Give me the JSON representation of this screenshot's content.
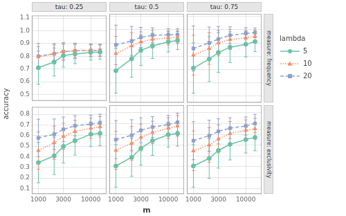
{
  "chart_data": {
    "type": "line",
    "log": "x",
    "grid": true,
    "legend": "right",
    "legend_title": "lambda",
    "xlabel": "m",
    "ylabel": "accuracy",
    "x": [
      1000,
      2000,
      3000,
      5000,
      10000,
      15000
    ],
    "xlim": [
      750,
      20000
    ],
    "xticks": [
      1000,
      3000,
      10000
    ],
    "columns": [
      "tau: 0.25",
      "tau: 0.5",
      "tau: 0.75"
    ],
    "series": [
      {
        "name": "5",
        "color": "#66c2a5",
        "marker": "circle",
        "line_style": "solid"
      },
      {
        "name": "10",
        "color": "#fc8d62",
        "marker": "triangle",
        "line_style": "dotted"
      },
      {
        "name": "20",
        "color": "#8da0cb",
        "marker": "square",
        "line_style": "dashed"
      }
    ],
    "rows": [
      {
        "label": "measure: frequency",
        "ylim": [
          0.45,
          1.12
        ],
        "yticks": [
          0.5,
          0.6,
          0.7,
          0.8,
          0.9,
          {
            "value": 1,
            "label": "1.0"
          },
          1.1
        ],
        "panels": [
          {
            "series": [
              {
                "values": [
                  0.71,
                  0.755,
                  0.805,
                  0.818,
                  0.83,
                  0.832
                ],
                "yerr": [
                  0.13,
                  0.11,
                  0.09,
                  0.076,
                  0.06,
                  0.056
                ]
              },
              {
                "values": [
                  0.795,
                  0.82,
                  0.838,
                  0.843,
                  0.846,
                  0.847
                ],
                "yerr": [
                  0.08,
                  0.07,
                  0.06,
                  0.054,
                  0.046,
                  0.044
                ]
              },
              {
                "values": [
                  0.8,
                  0.82,
                  0.837,
                  0.843,
                  0.846,
                  0.847
                ],
                "yerr": [
                  0.1,
                  0.08,
                  0.07,
                  0.06,
                  0.05,
                  0.048
                ]
              }
            ]
          },
          {
            "series": [
              {
                "values": [
                  0.69,
                  0.78,
                  0.845,
                  0.878,
                  0.908,
                  0.918
                ],
                "yerr": [
                  0.17,
                  0.14,
                  0.116,
                  0.096,
                  0.076,
                  0.068
                ]
              },
              {
                "values": [
                  0.82,
                  0.878,
                  0.908,
                  0.928,
                  0.938,
                  0.943
                ],
                "yerr": [
                  0.13,
                  0.1,
                  0.076,
                  0.066,
                  0.054,
                  0.048
                ]
              },
              {
                "values": [
                  0.885,
                  0.915,
                  0.942,
                  0.958,
                  0.962,
                  0.963
                ],
                "yerr": [
                  0.15,
                  0.11,
                  0.076,
                  0.056,
                  0.046,
                  0.044
                ]
              }
            ]
          },
          {
            "series": [
              {
                "values": [
                  0.71,
                  0.778,
                  0.828,
                  0.868,
                  0.89,
                  0.91
                ],
                "yerr": [
                  0.19,
                  0.17,
                  0.15,
                  0.116,
                  0.096,
                  0.076
                ]
              },
              {
                "values": [
                  0.808,
                  0.858,
                  0.9,
                  0.926,
                  0.938,
                  0.948
                ],
                "yerr": [
                  0.15,
                  0.12,
                  0.094,
                  0.076,
                  0.056,
                  0.048
                ]
              },
              {
                "values": [
                  0.858,
                  0.9,
                  0.93,
                  0.958,
                  0.972,
                  0.978
                ],
                "yerr": [
                  0.17,
                  0.12,
                  0.094,
                  0.064,
                  0.044,
                  0.036
                ]
              }
            ]
          }
        ]
      },
      {
        "label": "measure: exclusivity",
        "ylim": [
          0.05,
          0.87
        ],
        "yticks": [
          0.1,
          0.2,
          0.3,
          0.4,
          0.5,
          0.6,
          0.7,
          0.8
        ],
        "panels": [
          {
            "series": [
              {
                "values": [
                  0.345,
                  0.408,
                  0.498,
                  0.552,
                  0.612,
                  0.62
                ],
                "yerr": [
                  0.19,
                  0.176,
                  0.156,
                  0.136,
                  0.116,
                  0.116
                ]
              },
              {
                "values": [
                  0.458,
                  0.532,
                  0.592,
                  0.638,
                  0.668,
                  0.682
                ],
                "yerr": [
                  0.176,
                  0.156,
                  0.124,
                  0.104,
                  0.096,
                  0.096
                ]
              },
              {
                "values": [
                  0.578,
                  0.612,
                  0.658,
                  0.692,
                  0.708,
                  0.718
                ],
                "yerr": [
                  0.176,
                  0.144,
                  0.116,
                  0.096,
                  0.084,
                  0.084
                ]
              }
            ]
          },
          {
            "series": [
              {
                "values": [
                  0.308,
                  0.388,
                  0.472,
                  0.542,
                  0.598,
                  0.608
                ],
                "yerr": [
                  0.196,
                  0.176,
                  0.156,
                  0.136,
                  0.116,
                  0.116
                ]
              },
              {
                "values": [
                  0.452,
                  0.518,
                  0.572,
                  0.618,
                  0.658,
                  0.678
                ],
                "yerr": [
                  0.176,
                  0.156,
                  0.124,
                  0.104,
                  0.096,
                  0.096
                ]
              },
              {
                "values": [
                  0.552,
                  0.592,
                  0.638,
                  0.668,
                  0.692,
                  0.712
                ],
                "yerr": [
                  0.176,
                  0.144,
                  0.116,
                  0.096,
                  0.084,
                  0.084
                ]
              }
            ]
          },
          {
            "series": [
              {
                "values": [
                  0.308,
                  0.378,
                  0.452,
                  0.508,
                  0.552,
                  0.572
                ],
                "yerr": [
                  0.196,
                  0.184,
                  0.164,
                  0.144,
                  0.124,
                  0.124
                ]
              },
              {
                "values": [
                  0.448,
                  0.502,
                  0.558,
                  0.608,
                  0.638,
                  0.652
                ],
                "yerr": [
                  0.184,
                  0.16,
                  0.13,
                  0.11,
                  0.096,
                  0.096
                ]
              },
              {
                "values": [
                  0.542,
                  0.588,
                  0.628,
                  0.658,
                  0.678,
                  0.702
                ],
                "yerr": [
                  0.176,
                  0.144,
                  0.116,
                  0.096,
                  0.084,
                  0.084
                ]
              }
            ]
          }
        ]
      }
    ]
  }
}
